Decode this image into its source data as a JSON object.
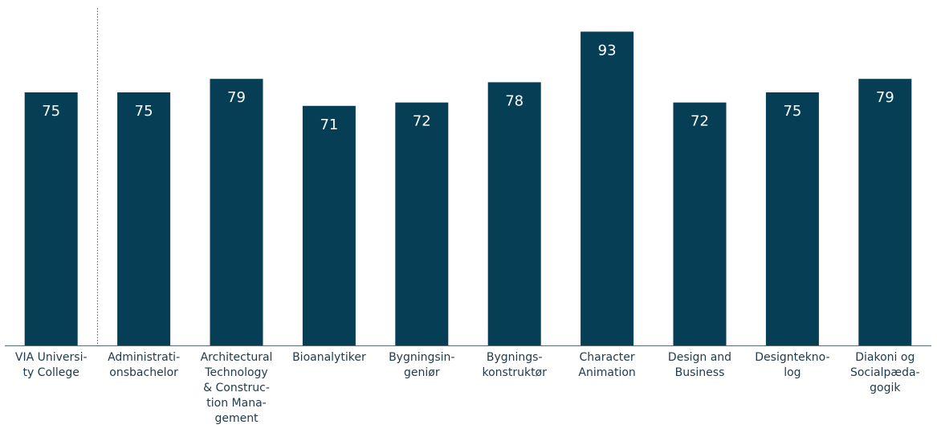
{
  "chart_data": {
    "type": "bar",
    "title": "",
    "xlabel": "",
    "ylabel": "",
    "ylim": [
      0,
      100
    ],
    "grid": false,
    "legend": "none",
    "categories": [
      "VIA University College",
      "Administrationsbachelor",
      "Architectural Technology & Construction Management",
      "Bioanalytiker",
      "Bygningsingeniør",
      "Bygningskonstruktør",
      "Character Animation",
      "Design and Business",
      "Designteknolog",
      "Diakoni og Socialpædagogik"
    ],
    "category_label_lines": [
      [
        "VIA Universi-",
        "ty College"
      ],
      [
        "Administrati-",
        "onsbachelor"
      ],
      [
        "Architectural",
        "Technology",
        "& Construc-",
        "tion Mana-",
        "gement"
      ],
      [
        "Bioanalytiker"
      ],
      [
        "Bygningsin-",
        "geniør"
      ],
      [
        "Bygnings-",
        "konstruktør"
      ],
      [
        "Character",
        "Animation"
      ],
      [
        "Design and",
        "Business"
      ],
      [
        "Designtekno-",
        "log"
      ],
      [
        "Diakoni og",
        "Socialpæda-",
        "gogik"
      ]
    ],
    "values": [
      75,
      75,
      79,
      71,
      72,
      78,
      93,
      72,
      75,
      79
    ],
    "bar_color": "#053e55",
    "value_label_color": "#ffffff",
    "separator_after_index": 0
  }
}
